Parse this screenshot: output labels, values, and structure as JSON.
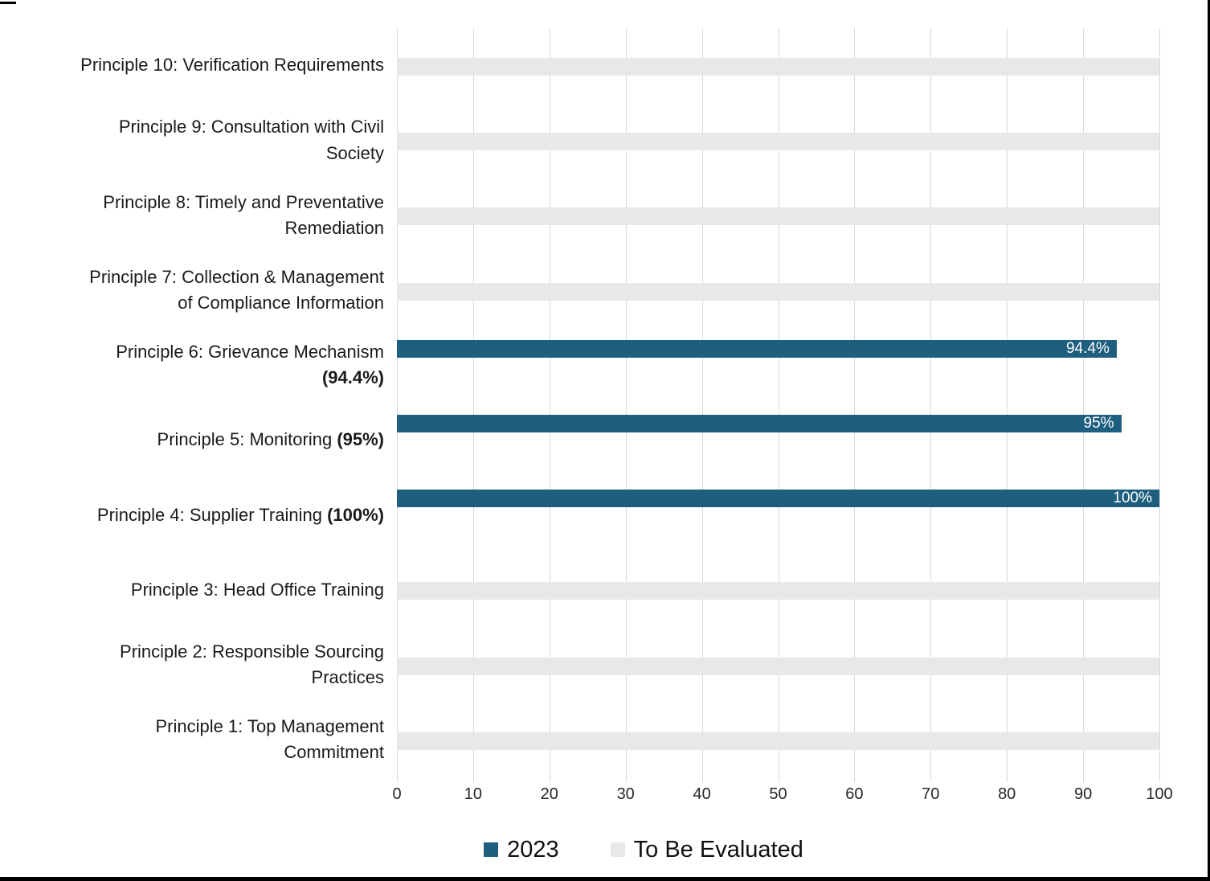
{
  "chart_data": {
    "type": "bar",
    "orientation": "horizontal",
    "title": "",
    "xlabel": "",
    "ylabel": "",
    "xlim": [
      0,
      100
    ],
    "xticks": [
      0,
      10,
      20,
      30,
      40,
      50,
      60,
      70,
      80,
      90,
      100
    ],
    "grid": "vertical",
    "legend_position": "bottom",
    "categories": [
      "Principle 10: Verification Requirements",
      "Principle 9: Consultation with Civil Society",
      "Principle 8: Timely and Preventative Remediation",
      "Principle 7: Collection & Management of Compliance Information",
      "Principle 6: Grievance Mechanism (94.4%)",
      "Principle 5: Monitoring (95%)",
      "Principle 4: Supplier Training (100%)",
      "Principle 3: Head Office Training",
      "Principle 2: Responsible Sourcing Practices",
      "Principle 1: Top Management Commitment"
    ],
    "category_label_lines": [
      [
        [
          {
            "text": "Principle 10: Verification Requirements",
            "bold": false
          }
        ]
      ],
      [
        [
          {
            "text": "Principle 9: Consultation with Civil",
            "bold": false
          }
        ],
        [
          {
            "text": "Society",
            "bold": false
          }
        ]
      ],
      [
        [
          {
            "text": "Principle 8: Timely and Preventative",
            "bold": false
          }
        ],
        [
          {
            "text": "Remediation",
            "bold": false
          }
        ]
      ],
      [
        [
          {
            "text": "Principle 7: Collection & Management",
            "bold": false
          }
        ],
        [
          {
            "text": "of Compliance Information",
            "bold": false
          }
        ]
      ],
      [
        [
          {
            "text": "Principle 6: Grievance Mechanism",
            "bold": false
          }
        ],
        [
          {
            "text": "(94.4%)",
            "bold": true
          }
        ]
      ],
      [
        [
          {
            "text": "Principle 5: Monitoring ",
            "bold": false
          },
          {
            "text": "(95%)",
            "bold": true
          }
        ]
      ],
      [
        [
          {
            "text": "Principle 4: Supplier Training ",
            "bold": false
          },
          {
            "text": "(100%)",
            "bold": true
          }
        ]
      ],
      [
        [
          {
            "text": "Principle 3: Head Office Training",
            "bold": false
          }
        ]
      ],
      [
        [
          {
            "text": "Principle 2: Responsible Sourcing",
            "bold": false
          }
        ],
        [
          {
            "text": "Practices",
            "bold": false
          }
        ]
      ],
      [
        [
          {
            "text": "Principle 1: Top Management",
            "bold": false
          }
        ],
        [
          {
            "text": "Commitment",
            "bold": false
          }
        ]
      ]
    ],
    "series": [
      {
        "name": "2023",
        "color": "#1e5f7f",
        "values": [
          null,
          null,
          null,
          null,
          94.4,
          95,
          100,
          null,
          null,
          null
        ],
        "value_labels": [
          null,
          null,
          null,
          null,
          "94.4%",
          "95%",
          "100%",
          null,
          null,
          null
        ]
      },
      {
        "name": "To Be Evaluated",
        "color": "#e8e8e8",
        "values": [
          100,
          100,
          100,
          100,
          null,
          null,
          null,
          100,
          100,
          100
        ],
        "value_labels": [
          null,
          null,
          null,
          null,
          null,
          null,
          null,
          null,
          null,
          null
        ]
      }
    ]
  },
  "colors": {
    "bar_2023": "#1e5f7f",
    "bar_to_be_evaluated": "#e8e8e8",
    "gridline": "#d9d9d9",
    "tick_text": "#262626",
    "category_text": "#1a1a1a",
    "value_label_text": "#ffffff",
    "frame_border": "#000000"
  }
}
